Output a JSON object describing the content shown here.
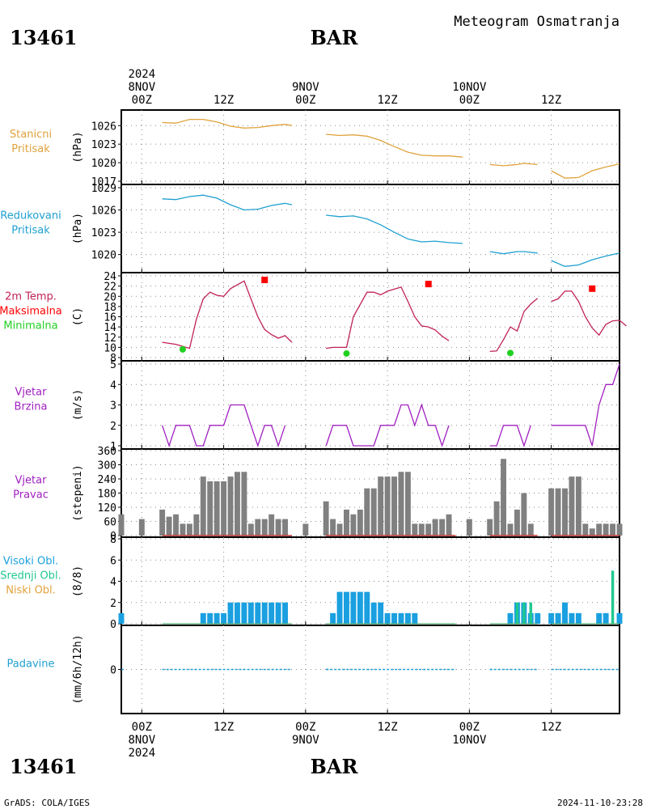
{
  "page": {
    "station_id": "13461",
    "station_name": "BAR",
    "title": "Meteogram Osmatranja",
    "footer_left": "GrADS: COLA/IGES",
    "footer_right": "2024-11-10-23:28"
  },
  "time_axis": {
    "top_labels": [
      {
        "lines": [
          "2024",
          "8NOV",
          "00Z"
        ]
      },
      {
        "lines": [
          "12Z"
        ]
      },
      {
        "lines": [
          "9NOV",
          "00Z"
        ]
      },
      {
        "lines": [
          "12Z"
        ]
      },
      {
        "lines": [
          "10NOV",
          "00Z"
        ]
      },
      {
        "lines": [
          "12Z"
        ]
      }
    ],
    "bottom_labels": [
      {
        "lines": [
          "00Z",
          "8NOV",
          "2024"
        ]
      },
      {
        "lines": [
          "12Z"
        ]
      },
      {
        "lines": [
          "00Z",
          "9NOV"
        ]
      },
      {
        "lines": [
          "12Z"
        ]
      },
      {
        "lines": [
          "00Z",
          "10NOV"
        ]
      },
      {
        "lines": [
          "12Z"
        ]
      }
    ],
    "tick_hours": [
      0,
      12,
      24,
      36,
      48,
      60
    ],
    "range_hours": [
      -3,
      70
    ]
  },
  "colors": {
    "pressure_station": "#e0a23c",
    "pressure_reduced": "#1fa0d0",
    "temperature": "#c0205a",
    "tmax": "#ff0000",
    "tmin": "#20d020",
    "wind": "#a020c0",
    "bars_gray": "#808080",
    "clouds_high": "#1aa0e0",
    "clouds_mid": "#20c890",
    "clouds_low": "#e0a23c",
    "precip": "#1fa0d0"
  },
  "chart_data": [
    {
      "type": "line",
      "panel": "station_pressure",
      "labels": [
        "Stanicni",
        "Pritisak"
      ],
      "unit": "(hPa)",
      "ylim": [
        1017,
        1028
      ],
      "yticks": [
        1017,
        1020,
        1023,
        1026
      ],
      "segments": [
        [
          [
            3,
            1026.5
          ],
          [
            5,
            1026.4
          ],
          [
            7,
            1027
          ],
          [
            9,
            1027
          ],
          [
            11,
            1026.6
          ],
          [
            13,
            1025.9
          ],
          [
            15,
            1025.6
          ],
          [
            17,
            1025.7
          ],
          [
            19,
            1026.0
          ],
          [
            21,
            1026.2
          ],
          [
            22,
            1026.0
          ]
        ],
        [
          [
            27,
            1024.6
          ],
          [
            29,
            1024.4
          ],
          [
            31,
            1024.5
          ],
          [
            33,
            1024.3
          ],
          [
            35,
            1023.6
          ],
          [
            37,
            1022.6
          ],
          [
            39,
            1021.7
          ],
          [
            41,
            1021.2
          ],
          [
            43,
            1021.1
          ],
          [
            45,
            1021.1
          ],
          [
            47,
            1020.9
          ]
        ],
        [
          [
            51,
            1019.7
          ],
          [
            53,
            1019.5
          ],
          [
            55,
            1019.7
          ],
          [
            56,
            1019.9
          ],
          [
            58,
            1019.7
          ]
        ],
        [
          [
            60,
            1018.7
          ],
          [
            62,
            1017.5
          ],
          [
            64,
            1017.6
          ],
          [
            66,
            1018.7
          ],
          [
            68,
            1019.3
          ],
          [
            70,
            1019.8
          ]
        ]
      ]
    },
    {
      "type": "line",
      "panel": "reduced_pressure",
      "labels": [
        "Redukovani",
        "Pritisak"
      ],
      "unit": "(hPa)",
      "ylim": [
        1018,
        1029
      ],
      "yticks": [
        1020,
        1023,
        1026,
        1029
      ],
      "segments": [
        [
          [
            3,
            1027.5
          ],
          [
            5,
            1027.4
          ],
          [
            7,
            1027.8
          ],
          [
            9,
            1028
          ],
          [
            11,
            1027.6
          ],
          [
            13,
            1026.7
          ],
          [
            15,
            1026.0
          ],
          [
            17,
            1026.1
          ],
          [
            19,
            1026.6
          ],
          [
            21,
            1026.9
          ],
          [
            22,
            1026.7
          ]
        ],
        [
          [
            27,
            1025.3
          ],
          [
            29,
            1025.1
          ],
          [
            31,
            1025.2
          ],
          [
            33,
            1024.8
          ],
          [
            35,
            1024.0
          ],
          [
            37,
            1023.0
          ],
          [
            39,
            1022.1
          ],
          [
            41,
            1021.7
          ],
          [
            43,
            1021.8
          ],
          [
            45,
            1021.6
          ],
          [
            47,
            1021.5
          ]
        ],
        [
          [
            51,
            1020.4
          ],
          [
            53,
            1020.1
          ],
          [
            55,
            1020.4
          ],
          [
            56,
            1020.4
          ],
          [
            58,
            1020.2
          ]
        ],
        [
          [
            60,
            1019.2
          ],
          [
            62,
            1018.4
          ],
          [
            64,
            1018.6
          ],
          [
            66,
            1019.3
          ],
          [
            68,
            1019.8
          ],
          [
            70,
            1020.2
          ]
        ]
      ]
    },
    {
      "type": "line",
      "panel": "temperature",
      "labels": [
        "2m Temp.",
        "Maksimalna",
        "Minimalna"
      ],
      "unit": "(C)",
      "ylim": [
        8,
        24
      ],
      "yticks": [
        8,
        10,
        12,
        14,
        16,
        18,
        20,
        22,
        24
      ],
      "segments": [
        [
          [
            3,
            11
          ],
          [
            5,
            10.6
          ],
          [
            6,
            10.2
          ],
          [
            7,
            9.8
          ],
          [
            8,
            15.5
          ],
          [
            9,
            19.5
          ],
          [
            10,
            20.8
          ],
          [
            11,
            20.2
          ],
          [
            12,
            20.0
          ],
          [
            13,
            21.5
          ],
          [
            15,
            23.0
          ],
          [
            16,
            19.5
          ],
          [
            17,
            16
          ],
          [
            18,
            13.5
          ],
          [
            19,
            12.5
          ],
          [
            20,
            11.8
          ],
          [
            21,
            12.3
          ],
          [
            22,
            11
          ]
        ],
        [
          [
            27,
            9.8
          ],
          [
            28,
            10
          ],
          [
            29,
            10
          ],
          [
            30,
            10
          ],
          [
            31,
            16
          ],
          [
            33,
            20.8
          ],
          [
            34,
            20.8
          ],
          [
            35,
            20.3
          ],
          [
            36,
            21
          ],
          [
            38,
            21.8
          ],
          [
            39,
            19
          ],
          [
            40,
            16
          ],
          [
            41,
            14.2
          ],
          [
            42,
            14
          ],
          [
            43,
            13.4
          ],
          [
            44,
            12.2
          ],
          [
            45,
            11.3
          ]
        ],
        [
          [
            51,
            9.2
          ],
          [
            52,
            9.3
          ],
          [
            53,
            11.5
          ],
          [
            54,
            14
          ],
          [
            55,
            13.2
          ],
          [
            56,
            17
          ],
          [
            57,
            18.5
          ],
          [
            58,
            19.6
          ]
        ],
        [
          [
            60,
            19
          ],
          [
            61,
            19.5
          ],
          [
            62,
            21
          ],
          [
            63,
            21
          ],
          [
            64,
            19
          ],
          [
            65,
            16
          ],
          [
            66,
            13.8
          ],
          [
            67,
            12.4
          ],
          [
            68,
            14.5
          ],
          [
            69,
            15.2
          ],
          [
            70,
            15.3
          ],
          [
            71,
            14.2
          ]
        ]
      ],
      "tmax_points": [
        [
          18,
          23.2
        ],
        [
          42,
          22.4
        ],
        [
          66,
          21.5
        ]
      ],
      "tmin_points": [
        [
          6,
          9.6
        ],
        [
          30,
          8.8
        ],
        [
          54,
          8.9
        ]
      ]
    },
    {
      "type": "line",
      "panel": "wind_speed",
      "labels": [
        "Vjetar",
        "Brzina"
      ],
      "unit": "(m/s)",
      "ylim": [
        1,
        5
      ],
      "yticks": [
        1,
        2,
        3,
        4,
        5
      ],
      "segments": [
        [
          [
            3,
            2
          ],
          [
            4,
            1
          ],
          [
            5,
            2
          ],
          [
            7,
            2
          ],
          [
            8,
            1
          ],
          [
            9,
            1
          ],
          [
            10,
            2
          ],
          [
            12,
            2
          ],
          [
            13,
            3
          ],
          [
            15,
            3
          ],
          [
            16,
            2
          ],
          [
            17,
            1
          ],
          [
            18,
            2
          ],
          [
            19,
            2
          ],
          [
            20,
            1
          ],
          [
            21,
            2
          ]
        ],
        [
          [
            27,
            1
          ],
          [
            28,
            2
          ],
          [
            30,
            2
          ],
          [
            31,
            1
          ],
          [
            33,
            1
          ],
          [
            34,
            1
          ],
          [
            35,
            2
          ],
          [
            37,
            2
          ],
          [
            38,
            3
          ],
          [
            39,
            3
          ],
          [
            40,
            2
          ],
          [
            41,
            3
          ],
          [
            42,
            2
          ],
          [
            43,
            2
          ],
          [
            44,
            1
          ],
          [
            45,
            2
          ]
        ],
        [
          [
            51,
            1
          ],
          [
            52,
            1
          ],
          [
            53,
            2
          ],
          [
            55,
            2
          ],
          [
            56,
            1
          ],
          [
            57,
            2
          ]
        ],
        [
          [
            60,
            2
          ],
          [
            65,
            2
          ],
          [
            66,
            1
          ],
          [
            67,
            3
          ],
          [
            68,
            4
          ],
          [
            69,
            4
          ],
          [
            70,
            5
          ]
        ]
      ]
    },
    {
      "type": "bar",
      "panel": "wind_direction",
      "labels": [
        "Vjetar",
        "Pravac"
      ],
      "unit": "(stepeni)",
      "ylim": [
        0,
        360
      ],
      "yticks": [
        0,
        60,
        120,
        180,
        240,
        300,
        360
      ],
      "x": [
        -3,
        0,
        3,
        4,
        5,
        6,
        7,
        8,
        9,
        10,
        11,
        12,
        13,
        14,
        15,
        16,
        17,
        18,
        19,
        20,
        21,
        24,
        27,
        28,
        29,
        30,
        31,
        32,
        33,
        34,
        35,
        36,
        37,
        38,
        39,
        40,
        41,
        42,
        43,
        44,
        45,
        48,
        51,
        52,
        53,
        54,
        55,
        56,
        57,
        60,
        61,
        62,
        63,
        64,
        65,
        66,
        67,
        68,
        69,
        70
      ],
      "values": [
        90,
        70,
        110,
        80,
        90,
        50,
        50,
        90,
        250,
        230,
        230,
        230,
        250,
        270,
        270,
        50,
        70,
        70,
        90,
        70,
        70,
        50,
        145,
        70,
        50,
        110,
        90,
        110,
        200,
        200,
        250,
        250,
        250,
        270,
        270,
        50,
        50,
        50,
        70,
        70,
        90,
        70,
        70,
        145,
        325,
        50,
        110,
        180,
        50,
        200,
        200,
        200,
        250,
        250,
        50,
        30,
        50,
        50,
        50,
        50
      ]
    },
    {
      "type": "bar",
      "panel": "clouds",
      "labels": [
        "Visoki Obl.",
        "Srednji Obl.",
        "Niski Obl."
      ],
      "unit": "(8/8)",
      "ylim": [
        0,
        8
      ],
      "yticks": [
        0,
        2,
        4,
        6,
        8
      ],
      "high_x": [
        -3,
        9,
        10,
        11,
        12,
        13,
        14,
        15,
        16,
        17,
        18,
        19,
        20,
        21,
        28,
        29,
        30,
        31,
        32,
        33,
        34,
        35,
        36,
        37,
        38,
        39,
        40,
        54,
        55,
        56,
        57,
        58,
        60,
        61,
        62,
        63,
        64,
        67,
        68,
        70
      ],
      "high_values": [
        1,
        1,
        1,
        1,
        1,
        2,
        2,
        2,
        2,
        2,
        2,
        2,
        2,
        2,
        1,
        3,
        3,
        3,
        3,
        3,
        2,
        2,
        1,
        1,
        1,
        1,
        1,
        1,
        2,
        2,
        1,
        1,
        1,
        1,
        2,
        1,
        1,
        1,
        1,
        1
      ],
      "mid_x": [
        55,
        56,
        57,
        69
      ],
      "mid_values": [
        2,
        2,
        2,
        5
      ]
    },
    {
      "type": "line",
      "panel": "precipitation",
      "labels": [
        "Padavine"
      ],
      "unit": "(mm/6h/12h)",
      "yticks": [
        0
      ],
      "values": "0"
    }
  ]
}
